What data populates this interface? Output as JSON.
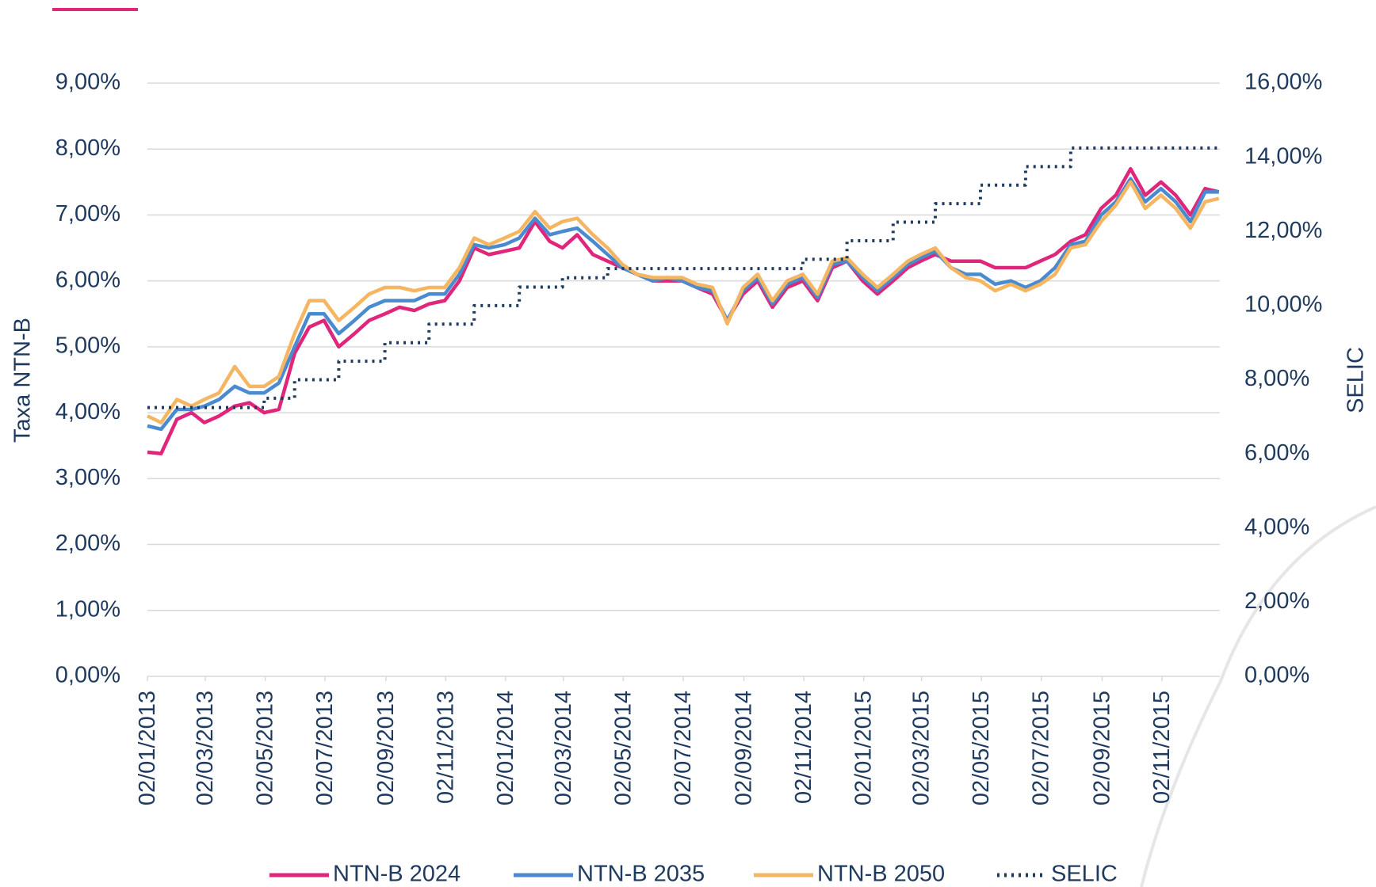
{
  "chart_data": {
    "type": "line",
    "y_label": "Taxa NTN-B",
    "y2_label": "SELIC",
    "x": [
      "02/01/2013",
      "16/01/2013",
      "01/02/2013",
      "16/02/2013",
      "01/03/2013",
      "16/03/2013",
      "01/04/2013",
      "16/04/2013",
      "01/05/2013",
      "16/05/2013",
      "01/06/2013",
      "16/06/2013",
      "01/07/2013",
      "16/07/2013",
      "01/08/2013",
      "16/08/2013",
      "01/09/2013",
      "16/09/2013",
      "01/10/2013",
      "16/10/2013",
      "01/11/2013",
      "16/11/2013",
      "01/12/2013",
      "16/12/2013",
      "01/01/2014",
      "16/01/2014",
      "01/02/2014",
      "16/02/2014",
      "01/03/2014",
      "16/03/2014",
      "01/04/2014",
      "16/04/2014",
      "01/05/2014",
      "16/05/2014",
      "01/06/2014",
      "16/06/2014",
      "01/07/2014",
      "16/07/2014",
      "01/08/2014",
      "16/08/2014",
      "01/09/2014",
      "16/09/2014",
      "01/10/2014",
      "16/10/2014",
      "01/11/2014",
      "16/11/2014",
      "01/12/2014",
      "16/12/2014",
      "01/01/2015",
      "16/01/2015",
      "01/02/2015",
      "16/02/2015",
      "01/03/2015",
      "16/03/2015",
      "01/04/2015",
      "16/04/2015",
      "01/05/2015",
      "16/05/2015",
      "01/06/2015",
      "16/06/2015",
      "01/07/2015",
      "16/07/2015",
      "01/08/2015",
      "16/08/2015",
      "01/09/2015",
      "16/09/2015",
      "01/10/2015",
      "16/10/2015",
      "01/11/2015",
      "16/11/2015",
      "01/12/2015",
      "16/12/2015",
      "30/12/2015"
    ],
    "xlim": [
      "02/01/2013",
      "31/12/2015"
    ],
    "xticks": [
      "02/01/2013",
      "02/03/2013",
      "02/05/2013",
      "02/07/2013",
      "02/09/2013",
      "02/11/2013",
      "02/01/2014",
      "02/03/2014",
      "02/05/2014",
      "02/07/2014",
      "02/09/2014",
      "02/11/2014",
      "02/01/2015",
      "02/03/2015",
      "02/05/2015",
      "02/07/2015",
      "02/09/2015",
      "02/11/2015"
    ],
    "ylim": [
      0,
      9
    ],
    "yticks": [
      {
        "value": 0,
        "label": "0,00%"
      },
      {
        "value": 1,
        "label": "1,00%"
      },
      {
        "value": 2,
        "label": "2,00%"
      },
      {
        "value": 3,
        "label": "3,00%"
      },
      {
        "value": 4,
        "label": "4,00%"
      },
      {
        "value": 5,
        "label": "5,00%"
      },
      {
        "value": 6,
        "label": "6,00%"
      },
      {
        "value": 7,
        "label": "7,00%"
      },
      {
        "value": 8,
        "label": "8,00%"
      },
      {
        "value": 9,
        "label": "9,00%"
      }
    ],
    "y2lim": [
      0,
      16
    ],
    "y2ticks": [
      {
        "value": 0,
        "label": "0,00%"
      },
      {
        "value": 2,
        "label": "2,00%"
      },
      {
        "value": 4,
        "label": "4,00%"
      },
      {
        "value": 6,
        "label": "6,00%"
      },
      {
        "value": 8,
        "label": "8,00%"
      },
      {
        "value": 10,
        "label": "10,00%"
      },
      {
        "value": 12,
        "label": "12,00%"
      },
      {
        "value": 14,
        "label": "14,00%"
      },
      {
        "value": 16,
        "label": "16,00%"
      }
    ],
    "grid": true,
    "legend": "bottom",
    "series": [
      {
        "name": "NTN-B 2024",
        "color": "#e0267a",
        "values": [
          3.4,
          3.38,
          3.9,
          4.0,
          3.85,
          3.95,
          4.1,
          4.15,
          4.0,
          4.05,
          4.9,
          5.3,
          5.4,
          5.0,
          5.2,
          5.4,
          5.5,
          5.6,
          5.55,
          5.65,
          5.7,
          6.0,
          6.5,
          6.4,
          6.45,
          6.5,
          6.9,
          6.6,
          6.5,
          6.7,
          6.4,
          6.3,
          6.2,
          6.1,
          6.0,
          6.0,
          6.0,
          5.9,
          5.8,
          5.4,
          5.8,
          6.0,
          5.6,
          5.9,
          6.0,
          5.7,
          6.2,
          6.3,
          6.0,
          5.8,
          6.0,
          6.2,
          6.3,
          6.4,
          6.3,
          6.3,
          6.3,
          6.2,
          6.2,
          6.2,
          6.3,
          6.4,
          6.6,
          6.7,
          7.1,
          7.3,
          7.7,
          7.3,
          7.5,
          7.3,
          7.0,
          7.4,
          7.35
        ]
      },
      {
        "name": "NTN-B 2035",
        "color": "#4a8bd0",
        "values": [
          3.8,
          3.75,
          4.05,
          4.05,
          4.1,
          4.2,
          4.4,
          4.3,
          4.3,
          4.45,
          5.0,
          5.5,
          5.5,
          5.2,
          5.4,
          5.6,
          5.7,
          5.7,
          5.7,
          5.8,
          5.8,
          6.1,
          6.55,
          6.5,
          6.55,
          6.65,
          6.95,
          6.7,
          6.75,
          6.8,
          6.6,
          6.4,
          6.2,
          6.1,
          6.0,
          6.05,
          6.0,
          5.9,
          5.85,
          5.4,
          5.85,
          6.05,
          5.65,
          5.95,
          6.05,
          5.75,
          6.25,
          6.3,
          6.05,
          5.85,
          6.05,
          6.25,
          6.35,
          6.45,
          6.2,
          6.1,
          6.1,
          5.95,
          6.0,
          5.9,
          6.0,
          6.2,
          6.55,
          6.6,
          7.0,
          7.2,
          7.55,
          7.2,
          7.4,
          7.2,
          6.9,
          7.35,
          7.35
        ]
      },
      {
        "name": "NTN-B 2050",
        "color": "#f5b561",
        "values": [
          3.95,
          3.85,
          4.2,
          4.1,
          4.2,
          4.3,
          4.7,
          4.4,
          4.4,
          4.55,
          5.2,
          5.7,
          5.7,
          5.4,
          5.6,
          5.8,
          5.9,
          5.9,
          5.85,
          5.9,
          5.9,
          6.2,
          6.65,
          6.55,
          6.65,
          6.75,
          7.05,
          6.8,
          6.9,
          6.95,
          6.7,
          6.5,
          6.25,
          6.1,
          6.05,
          6.05,
          6.05,
          5.95,
          5.9,
          5.35,
          5.9,
          6.1,
          5.7,
          6.0,
          6.1,
          5.8,
          6.3,
          6.35,
          6.1,
          5.9,
          6.1,
          6.3,
          6.4,
          6.5,
          6.2,
          6.05,
          6.0,
          5.85,
          5.95,
          5.85,
          5.95,
          6.1,
          6.5,
          6.55,
          6.9,
          7.15,
          7.5,
          7.1,
          7.3,
          7.1,
          6.8,
          7.2,
          7.25
        ]
      },
      {
        "name": "SELIC",
        "color": "#1f3a5f",
        "axis": "y2",
        "dashed": true,
        "step": true,
        "values": [
          7.25,
          7.25,
          7.25,
          7.25,
          7.25,
          7.25,
          7.25,
          7.25,
          7.5,
          7.5,
          8.0,
          8.0,
          8.0,
          8.5,
          8.5,
          8.5,
          9.0,
          9.0,
          9.0,
          9.5,
          9.5,
          9.5,
          10.0,
          10.0,
          10.0,
          10.5,
          10.5,
          10.5,
          10.75,
          10.75,
          10.75,
          11.0,
          11.0,
          11.0,
          11.0,
          11.0,
          11.0,
          11.0,
          11.0,
          11.0,
          11.0,
          11.0,
          11.0,
          11.0,
          11.25,
          11.25,
          11.25,
          11.75,
          11.75,
          11.75,
          12.25,
          12.25,
          12.25,
          12.75,
          12.75,
          12.75,
          13.25,
          13.25,
          13.25,
          13.75,
          13.75,
          13.75,
          14.25,
          14.25,
          14.25,
          14.25,
          14.25,
          14.25,
          14.25,
          14.25,
          14.25,
          14.25,
          14.25
        ]
      }
    ]
  }
}
